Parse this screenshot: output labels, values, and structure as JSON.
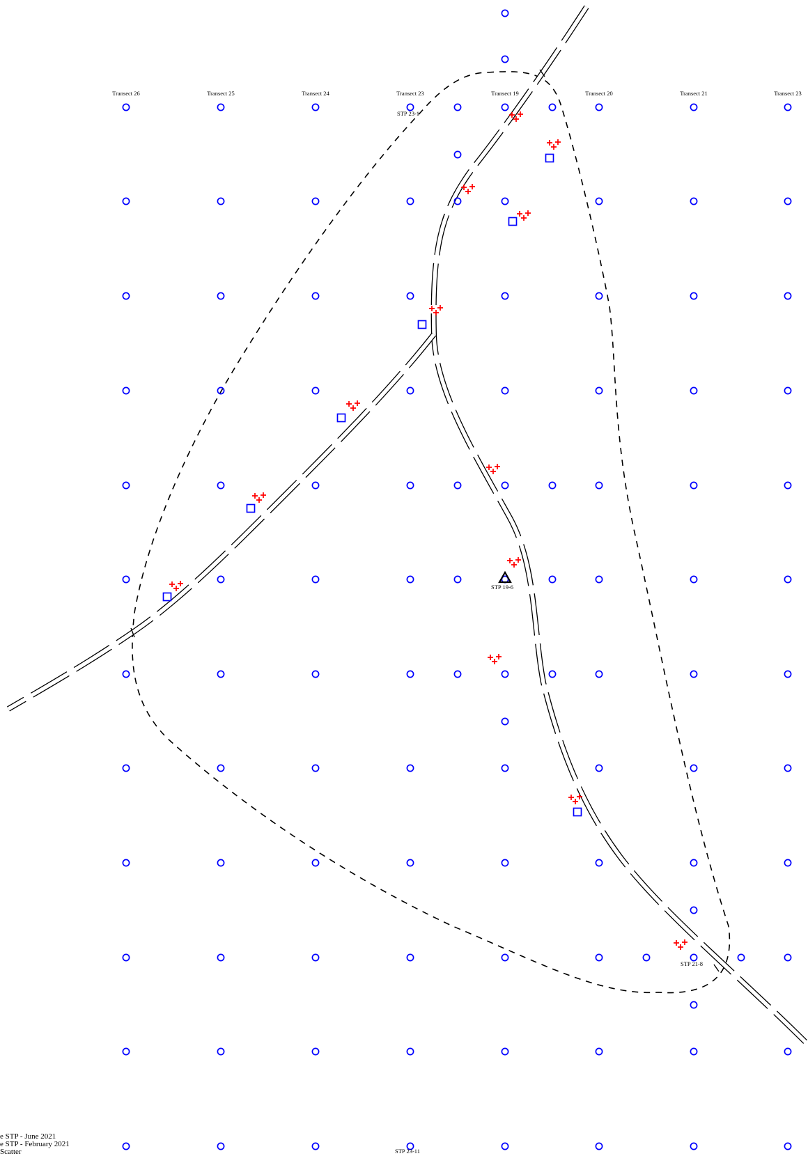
{
  "map": {
    "colors": {
      "stp": "#0000ff",
      "find": "#ff0000",
      "line": "#000000"
    },
    "transect_labels": [
      "Transect 26",
      "Transect 25",
      "Transect 24",
      "Transect 23",
      "Transect 19",
      "Transect 20",
      "Transect 21",
      "Transect 23"
    ],
    "stp_labels": [
      "STP 23-1",
      "STP 19-6",
      "STP 21-8",
      "STP 23-11"
    ],
    "legend": [
      "e  STP - June 2021",
      "e STP - February 2021",
      "Scatter"
    ],
    "symbols": {
      "shovel_test": "blue-circle",
      "positive_test": "blue-square",
      "artifact": "red-cross-cluster",
      "diagnostic_test": "black-triangle"
    }
  }
}
